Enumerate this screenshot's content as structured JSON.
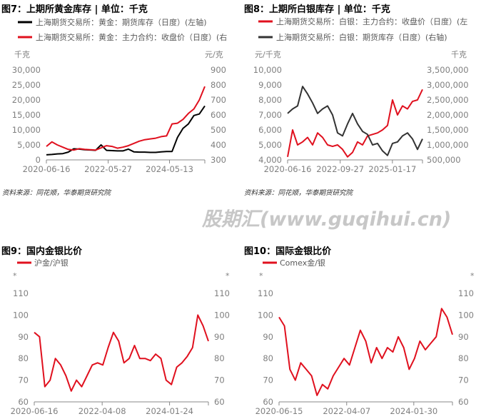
{
  "chart_data": [
    {
      "type": "line",
      "title": "图7：上期所黄金库存 |   单位：千克",
      "left_unit": "千克",
      "right_unit": "元/克",
      "ylim_left": [
        0,
        30000
      ],
      "ylim_right": [
        300,
        900
      ],
      "yticks_left": [
        "30,000",
        "25,000",
        "20,000",
        "15,000",
        "10,000",
        "5,000",
        "0"
      ],
      "yticks_right": [
        "900",
        "800",
        "700",
        "600",
        "500",
        "400",
        "300"
      ],
      "xticks": [
        "2020-06-16",
        "2022-05-27",
        "2024-05-13"
      ],
      "x_range": [
        "2020-06-16",
        "2025-06"
      ],
      "series": [
        {
          "name": "上海期货交易所：黄金：期货库存（日度）(左轴)",
          "axis": "left",
          "color": "#000000",
          "values": [
            1700,
            1800,
            2000,
            2100,
            2600,
            3700,
            3600,
            3400,
            3300,
            3200,
            5000,
            3200,
            3100,
            3000,
            3000,
            3600,
            2700,
            2600,
            2600,
            2500,
            2500,
            2700,
            2800,
            2800,
            7500,
            10500,
            12000,
            14800,
            15300,
            18000
          ]
        },
        {
          "name": "上海期货交易所：黄金：主力合约：收盘价（日度）(右",
          "axis": "right",
          "color": "#e0101e",
          "values": [
            390,
            420,
            400,
            385,
            370,
            365,
            375,
            370,
            368,
            365,
            380,
            395,
            390,
            378,
            385,
            395,
            410,
            425,
            435,
            440,
            445,
            455,
            460,
            540,
            545,
            570,
            610,
            640,
            700,
            790
          ]
        }
      ],
      "source": "资料来源：同花顺，华泰期货研究院"
    },
    {
      "type": "line",
      "title": "图8：上期所白银库存 | 单位：千克",
      "left_unit": "元/千克",
      "right_unit": "千克",
      "ylim_left": [
        4000,
        10000
      ],
      "ylim_right": [
        500000,
        3500000
      ],
      "yticks_left": [
        "10,000",
        "9,000",
        "8,000",
        "7,000",
        "6,000",
        "5,000",
        "4,000"
      ],
      "yticks_right": [
        "3,500,000",
        "3,000,000",
        "2,500,000",
        "2,000,000",
        "1,500,000",
        "1,000,000",
        "500,000"
      ],
      "xticks": [
        "2020-06-16",
        "2022-09-27",
        "2025-01-17"
      ],
      "x_range": [
        "2020-06-16",
        "2025-06"
      ],
      "series": [
        {
          "name": "上海期货交易所：白银：主力合约：收盘价（日度）(左",
          "axis": "left",
          "color": "#e0101e",
          "values": [
            4200,
            6000,
            5000,
            5200,
            5500,
            5000,
            5800,
            5500,
            5000,
            4900,
            5000,
            4700,
            4200,
            4500,
            5200,
            5000,
            5600,
            5700,
            5800,
            6000,
            6300,
            8000,
            7000,
            7600,
            7400,
            7900,
            8000,
            8700
          ]
        },
        {
          "name": "上海期货交易所：白银：期货库存（日度）(右轴)",
          "axis": "right",
          "color": "#333333",
          "values": [
            2050000,
            2200000,
            2300000,
            2950000,
            2700000,
            2400000,
            2050000,
            2200000,
            2300000,
            2000000,
            1400000,
            1300000,
            1700000,
            2050000,
            1700000,
            1450000,
            1350000,
            1000000,
            1050000,
            800000,
            650000,
            1050000,
            1100000,
            1300000,
            1400000,
            1200000,
            850000,
            1200000
          ]
        }
      ],
      "source": "资料来源：同花顺，华泰期货研究院"
    },
    {
      "type": "line",
      "title": "图9：国内金银比价",
      "left_unit": "*",
      "right_unit": "*",
      "ylim": [
        60,
        110
      ],
      "yticks": [
        "110",
        "100",
        "90",
        "80",
        "70",
        "60"
      ],
      "xticks": [
        "2020-06-16",
        "2022-04-08",
        "2024-01-24"
      ],
      "x_range": [
        "2020-06-16",
        "2025-06"
      ],
      "series": [
        {
          "name": "沪金/沪银",
          "color": "#e0101e",
          "values": [
            92,
            90,
            67,
            70,
            80,
            77,
            72,
            65,
            70,
            67,
            72,
            77,
            78,
            77,
            85,
            92,
            88,
            78,
            80,
            86,
            80,
            80,
            79,
            82,
            80,
            70,
            68,
            76,
            78,
            81,
            85,
            100,
            95,
            88
          ]
        }
      ]
    },
    {
      "type": "line",
      "title": "图10：国际金银比价",
      "left_unit": "*",
      "right_unit": "*",
      "ylim": [
        60,
        110
      ],
      "yticks": [
        "110",
        "100",
        "90",
        "80",
        "70",
        "60"
      ],
      "xticks": [
        "2020-06-15",
        "2022-04-07",
        "2024-01-30"
      ],
      "x_range": [
        "2020-06-15",
        "2025-06"
      ],
      "series": [
        {
          "name": "Comex金/银",
          "color": "#e0101e",
          "values": [
            99,
            95,
            75,
            70,
            78,
            75,
            72,
            63,
            68,
            66,
            72,
            76,
            80,
            77,
            85,
            93,
            88,
            78,
            85,
            80,
            85,
            83,
            90,
            85,
            75,
            80,
            88,
            84,
            87,
            90,
            103,
            99,
            91
          ]
        }
      ]
    }
  ],
  "watermark": "股期汇(www.guqihui.cn)"
}
